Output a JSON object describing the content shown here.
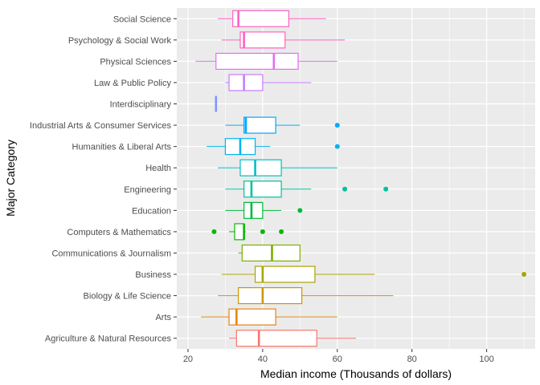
{
  "chart_data": {
    "type": "boxplot",
    "orientation": "horizontal",
    "xlabel": "Median income (Thousands of dollars)",
    "ylabel": "Major Category",
    "xlim": [
      17,
      113
    ],
    "xticks": [
      20,
      40,
      60,
      80,
      100
    ],
    "grid": true,
    "legend": "none",
    "categories": [
      {
        "name": "Social Science",
        "color": "#FF61C3",
        "min": 28,
        "q1": 32,
        "median": 33.5,
        "q3": 47,
        "max": 57,
        "outliers": []
      },
      {
        "name": "Psychology & Social Work",
        "color": "#FF62BC",
        "min": 29,
        "q1": 34,
        "median": 35,
        "q3": 46,
        "max": 62,
        "outliers": []
      },
      {
        "name": "Physical Sciences",
        "color": "#E76BF3",
        "min": 22,
        "q1": 27.5,
        "median": 43,
        "q3": 49.5,
        "max": 60,
        "outliers": []
      },
      {
        "name": "Law & Public Policy",
        "color": "#C77CFF",
        "min": 30,
        "q1": 31,
        "median": 35,
        "q3": 40,
        "max": 53,
        "outliers": []
      },
      {
        "name": "Interdisciplinary",
        "color": "#8494FF",
        "min": 27.5,
        "q1": 27.5,
        "median": 27.5,
        "q3": 27.5,
        "max": 27.5,
        "outliers": []
      },
      {
        "name": "Industrial Arts & Consumer Services",
        "color": "#00A9FF",
        "min": 30,
        "q1": 35,
        "median": 35.5,
        "q3": 43.5,
        "max": 50,
        "outliers": [
          60
        ]
      },
      {
        "name": "Humanities & Liberal Arts",
        "color": "#00B4F0",
        "min": 25,
        "q1": 30,
        "median": 34,
        "q3": 38,
        "max": 42,
        "outliers": [
          60
        ]
      },
      {
        "name": "Health",
        "color": "#00BFC4",
        "min": 28,
        "q1": 34,
        "median": 38,
        "q3": 45,
        "max": 60,
        "outliers": []
      },
      {
        "name": "Engineering",
        "color": "#00C19A",
        "min": 30,
        "q1": 35,
        "median": 37,
        "q3": 45,
        "max": 53,
        "outliers": [
          62,
          73
        ]
      },
      {
        "name": "Education",
        "color": "#00BA38",
        "min": 30,
        "q1": 35,
        "median": 37,
        "q3": 40,
        "max": 45,
        "outliers": [
          50
        ]
      },
      {
        "name": "Computers & Mathematics",
        "color": "#0CB702",
        "min": 31,
        "q1": 32.5,
        "median": 35,
        "q3": 35,
        "max": 35.5,
        "outliers": [
          27,
          40,
          45
        ]
      },
      {
        "name": "Communications & Journalism",
        "color": "#7CAE00",
        "min": 33.5,
        "q1": 34.5,
        "median": 42.5,
        "q3": 50,
        "max": 50,
        "outliers": []
      },
      {
        "name": "Business",
        "color": "#ABA300",
        "min": 29,
        "q1": 38,
        "median": 40,
        "q3": 54,
        "max": 70,
        "outliers": [
          110
        ]
      },
      {
        "name": "Biology & Life Science",
        "color": "#CD9600",
        "min": 28,
        "q1": 33.5,
        "median": 40,
        "q3": 50.5,
        "max": 75,
        "outliers": []
      },
      {
        "name": "Arts",
        "color": "#E68613",
        "min": 23.5,
        "q1": 31,
        "median": 33,
        "q3": 43.5,
        "max": 60,
        "outliers": []
      },
      {
        "name": "Agriculture & Natural Resources",
        "color": "#F8766D",
        "min": 31,
        "q1": 33,
        "median": 39,
        "q3": 54.5,
        "max": 65,
        "outliers": []
      }
    ]
  }
}
